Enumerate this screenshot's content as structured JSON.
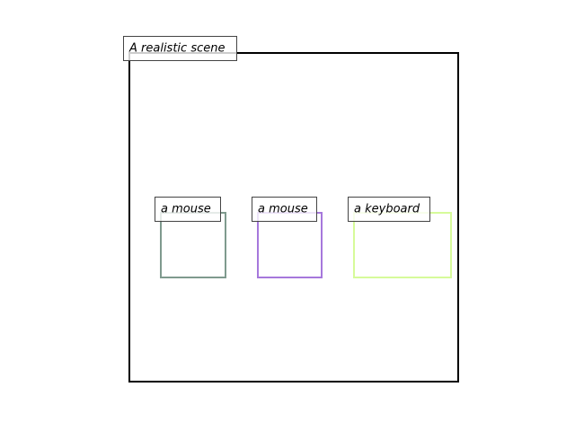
{
  "scene": {
    "caption": "A realistic scene",
    "frame_color": "#000000"
  },
  "objects": [
    {
      "label": "a mouse",
      "color": "#7f9a8e"
    },
    {
      "label": "a mouse",
      "color": "#a678dc"
    },
    {
      "label": "a keyboard",
      "color": "#d6fb9a"
    }
  ]
}
